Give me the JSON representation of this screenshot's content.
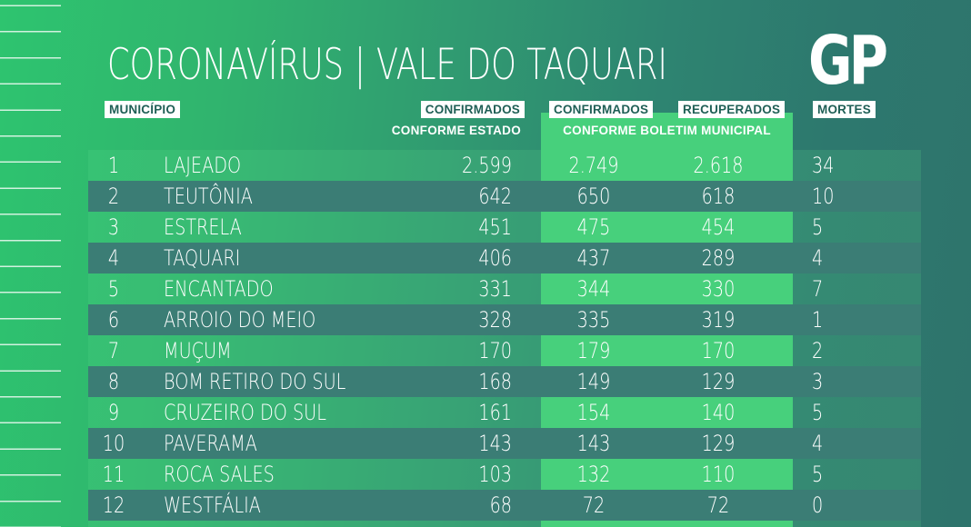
{
  "title": {
    "left": "CORONAVÍRUS",
    "sep": "|",
    "right": "VALE DO TAQUARI"
  },
  "logo": {
    "text": "GP"
  },
  "table": {
    "headers": {
      "municipio": "MUNICÍPIO",
      "confirmados_estado": "CONFIRMADOS",
      "confirmados_estado_sub": "CONFORME ESTADO",
      "confirmados_municipal": "CONFIRMADOS",
      "recuperados": "RECUPERADOS",
      "municipal_sub": "CONFORME BOLETIM MUNICIPAL",
      "mortes": "MORTES"
    },
    "rows": [
      {
        "rank": "1",
        "municipio": "LAJEADO",
        "confirmados_estado": "2.599",
        "confirmados_municipal": "2.749",
        "recuperados": "2.618",
        "mortes": "34"
      },
      {
        "rank": "2",
        "municipio": "TEUTÔNIA",
        "confirmados_estado": "642",
        "confirmados_municipal": "650",
        "recuperados": "618",
        "mortes": "10"
      },
      {
        "rank": "3",
        "municipio": "ESTRELA",
        "confirmados_estado": "451",
        "confirmados_municipal": "475",
        "recuperados": "454",
        "mortes": "5"
      },
      {
        "rank": "4",
        "municipio": "TAQUARI",
        "confirmados_estado": "406",
        "confirmados_municipal": "437",
        "recuperados": "289",
        "mortes": "4"
      },
      {
        "rank": "5",
        "municipio": "ENCANTADO",
        "confirmados_estado": "331",
        "confirmados_municipal": "344",
        "recuperados": "330",
        "mortes": "7"
      },
      {
        "rank": "6",
        "municipio": "ARROIO DO MEIO",
        "confirmados_estado": "328",
        "confirmados_municipal": "335",
        "recuperados": "319",
        "mortes": "1"
      },
      {
        "rank": "7",
        "municipio": "MUÇUM",
        "confirmados_estado": "170",
        "confirmados_municipal": "179",
        "recuperados": "170",
        "mortes": "2"
      },
      {
        "rank": "8",
        "municipio": "BOM RETIRO DO SUL",
        "confirmados_estado": "168",
        "confirmados_municipal": "149",
        "recuperados": "129",
        "mortes": "3"
      },
      {
        "rank": "9",
        "municipio": "CRUZEIRO DO SUL",
        "confirmados_estado": "161",
        "confirmados_municipal": "154",
        "recuperados": "140",
        "mortes": "5"
      },
      {
        "rank": "10",
        "municipio": "PAVERAMA",
        "confirmados_estado": "143",
        "confirmados_municipal": "143",
        "recuperados": "129",
        "mortes": "4"
      },
      {
        "rank": "11",
        "municipio": "ROCA SALES",
        "confirmados_estado": "103",
        "confirmados_municipal": "132",
        "recuperados": "110",
        "mortes": "5"
      },
      {
        "rank": "12",
        "municipio": "WESTFÁLIA",
        "confirmados_estado": "68",
        "confirmados_municipal": "72",
        "recuperados": "72",
        "mortes": "0"
      }
    ]
  },
  "colors": {
    "background_left": "#2ec46f",
    "background_right": "#2e746c",
    "row_band_dark": "#3b7d75",
    "row_band_light": "#47d07c",
    "odd_row_tint": "rgba(93,219,141,0.18)",
    "header_box_bg": "#ffffff",
    "header_box_text": "#1f5f56",
    "text": "#ffffff"
  },
  "chart_data": {
    "type": "table",
    "title": "CORONAVÍRUS | VALE DO TAQUARI",
    "columns": [
      "MUNICÍPIO",
      "CONFIRMADOS CONFORME ESTADO",
      "CONFIRMADOS CONFORME BOLETIM MUNICIPAL",
      "RECUPERADOS CONFORME BOLETIM MUNICIPAL",
      "MORTES"
    ],
    "municipios": [
      "LAJEADO",
      "TEUTÔNIA",
      "ESTRELA",
      "TAQUARI",
      "ENCANTADO",
      "ARROIO DO MEIO",
      "MUÇUM",
      "BOM RETIRO DO SUL",
      "CRUZEIRO DO SUL",
      "PAVERAMA",
      "ROCA SALES",
      "WESTFÁLIA"
    ],
    "confirmados_estado": [
      2599,
      642,
      451,
      406,
      331,
      328,
      170,
      168,
      161,
      143,
      103,
      68
    ],
    "confirmados_municipal": [
      2749,
      650,
      475,
      437,
      344,
      335,
      179,
      149,
      154,
      143,
      132,
      72
    ],
    "recuperados": [
      2618,
      618,
      454,
      289,
      330,
      319,
      170,
      129,
      140,
      129,
      110,
      72
    ],
    "mortes": [
      34,
      10,
      5,
      4,
      7,
      1,
      2,
      3,
      5,
      4,
      5,
      0
    ]
  }
}
